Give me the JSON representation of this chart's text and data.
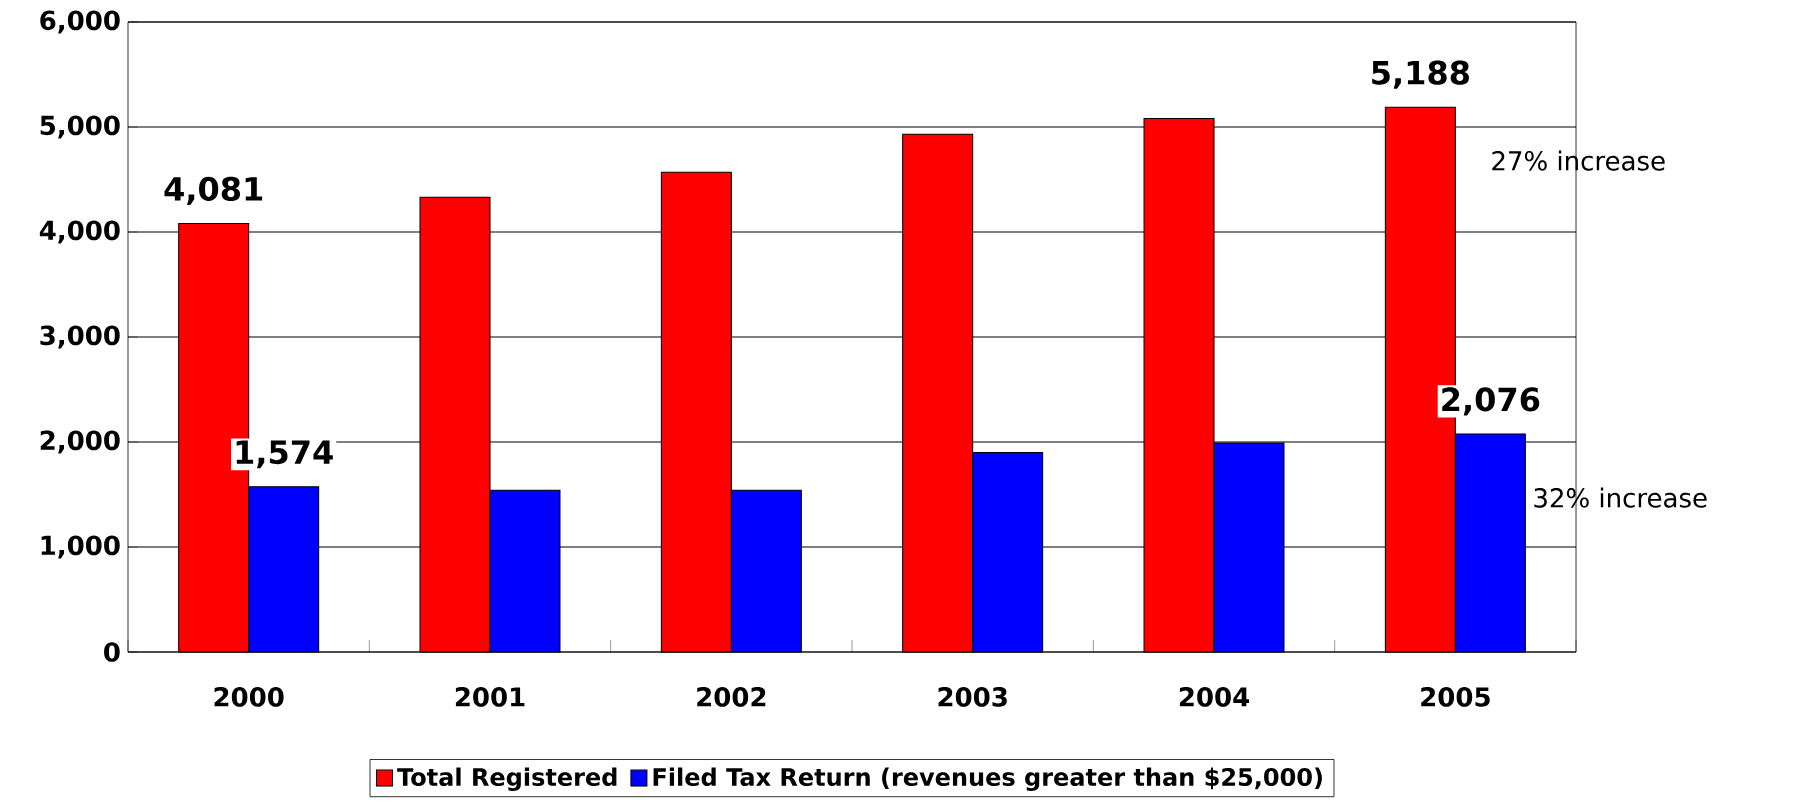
{
  "chart_data": {
    "type": "bar",
    "categories": [
      "2000",
      "2001",
      "2002",
      "2003",
      "2004",
      "2005"
    ],
    "series": [
      {
        "name": "Total Registered",
        "color": "#ff0000",
        "values": [
          4081,
          4330,
          4570,
          4930,
          5080,
          5188
        ],
        "value_labels": [
          "4,081",
          null,
          null,
          null,
          null,
          "5,188"
        ]
      },
      {
        "name": "Filed Tax Return (revenues greater than $25,000)",
        "color": "#0000ff",
        "values": [
          1574,
          1540,
          1540,
          1900,
          1990,
          2076
        ],
        "value_labels": [
          "1,574",
          null,
          null,
          null,
          null,
          "2,076"
        ]
      }
    ],
    "ylim": [
      0,
      6000
    ],
    "yticks": [
      {
        "value": 0,
        "label": "0"
      },
      {
        "value": 1000,
        "label": "1,000"
      },
      {
        "value": 2000,
        "label": "2,000"
      },
      {
        "value": 3000,
        "label": "3,000"
      },
      {
        "value": 4000,
        "label": "4,000"
      },
      {
        "value": 5000,
        "label": "5,000"
      },
      {
        "value": 6000,
        "label": "6,000"
      }
    ],
    "grid": "y",
    "legend": "bottom",
    "annotations": [
      "27% increase",
      "32% increase"
    ]
  }
}
